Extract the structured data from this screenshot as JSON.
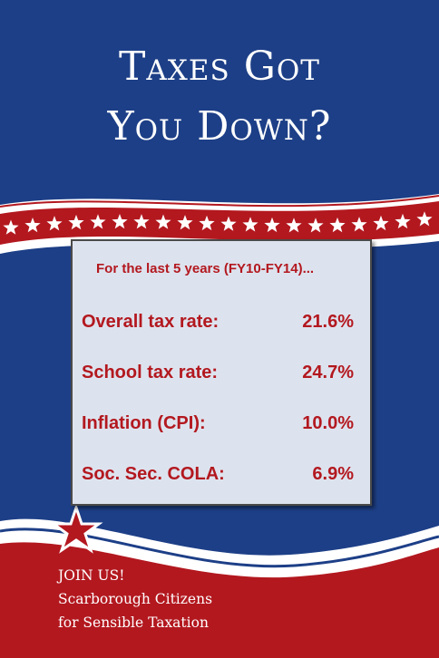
{
  "title": {
    "line1": "Taxes Got",
    "line2": "You Down?"
  },
  "box": {
    "intro": "For the last 5 years (FY10-FY14)...",
    "rows": [
      {
        "label": "Overall tax rate:",
        "value": "21.6%"
      },
      {
        "label": "School tax rate:",
        "value": "24.7%"
      },
      {
        "label": "Inflation (CPI):",
        "value": "10.0%"
      },
      {
        "label": "Soc. Sec. COLA:",
        "value": "6.9%"
      }
    ]
  },
  "footer": {
    "line1": "JOIN US!",
    "line2": "Scarborough Citizens",
    "line3": "for Sensible Taxation"
  },
  "colors": {
    "navy": "#1d3f87",
    "red": "#b3181f",
    "white": "#ffffff",
    "box": "#dde3ee"
  }
}
